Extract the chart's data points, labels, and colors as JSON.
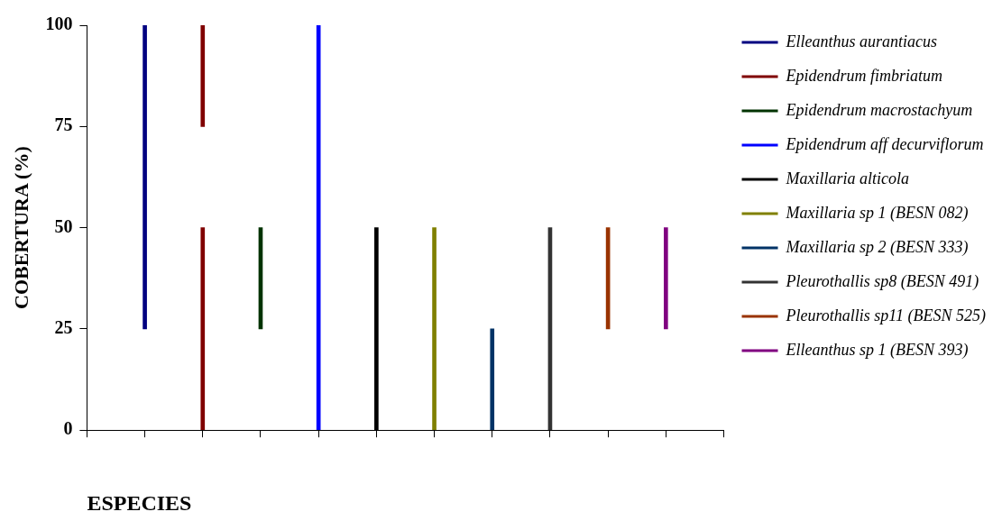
{
  "chart_data": {
    "type": "bar",
    "xlabel": "ESPECIES",
    "ylabel": "COBERTURA (%)",
    "categories": [
      null,
      null,
      null,
      null,
      null,
      null,
      null,
      null,
      null,
      null,
      null,
      null
    ],
    "ylim": [
      0,
      100
    ],
    "yticks": [
      0,
      25,
      50,
      75,
      100
    ],
    "grid": false,
    "legend": "right",
    "series": [
      {
        "name": "Elleanthus aurantiacus",
        "color": "#000080",
        "values": [
          null,
          75,
          null,
          null,
          null,
          null,
          null,
          null,
          null,
          null,
          null,
          null
        ],
        "base": [
          null,
          25,
          null,
          null,
          null,
          null,
          null,
          null,
          null,
          null,
          null,
          null
        ]
      },
      {
        "name": "Epidendrum fimbriatum",
        "color": "#800000",
        "values": [
          null,
          null,
          50,
          null,
          null,
          null,
          null,
          null,
          null,
          null,
          null,
          null
        ],
        "base": [
          null,
          null,
          0,
          null,
          null,
          null,
          null,
          null,
          null,
          null,
          null,
          null
        ]
      },
      {
        "color": "#800000",
        "values": [
          null,
          null,
          25,
          null,
          null,
          null,
          null,
          null,
          null,
          null,
          null,
          null
        ],
        "base": [
          null,
          null,
          75,
          null,
          null,
          null,
          null,
          null,
          null,
          null,
          null,
          null
        ]
      },
      {
        "name": "Epidendrum macrostachyum",
        "color": "#003300",
        "values": [
          null,
          null,
          null,
          25,
          null,
          null,
          null,
          null,
          null,
          null,
          null,
          null
        ],
        "base": [
          null,
          null,
          null,
          25,
          null,
          null,
          null,
          null,
          null,
          null,
          null,
          null
        ]
      },
      {
        "name": "Epidendrum aff decurviflorum",
        "color": "#0000ff",
        "values": [
          null,
          null,
          null,
          null,
          100,
          null,
          null,
          null,
          null,
          null,
          null,
          null
        ],
        "base": [
          null,
          null,
          null,
          null,
          0,
          null,
          null,
          null,
          null,
          null,
          null,
          null
        ]
      },
      {
        "name": "Maxillaria alticola",
        "color": "#000000",
        "values": [
          null,
          null,
          null,
          null,
          null,
          50,
          null,
          null,
          null,
          null,
          null,
          null
        ],
        "base": [
          null,
          null,
          null,
          null,
          null,
          0,
          null,
          null,
          null,
          null,
          null,
          null
        ]
      },
      {
        "name": "Maxillaria sp 1 (BESN 082)",
        "color": "#808000",
        "values": [
          null,
          null,
          null,
          null,
          null,
          null,
          50,
          null,
          null,
          null,
          null,
          null
        ],
        "base": [
          null,
          null,
          null,
          null,
          null,
          null,
          0,
          null,
          null,
          null,
          null,
          null
        ]
      },
      {
        "name": "Maxillaria sp 2 (BESN 333)",
        "color": "#003366",
        "values": [
          null,
          null,
          null,
          null,
          null,
          null,
          null,
          25,
          null,
          null,
          null,
          null
        ],
        "base": [
          null,
          null,
          null,
          null,
          null,
          null,
          null,
          0,
          null,
          null,
          null,
          null
        ]
      },
      {
        "name": "Pleurothallis sp8 (BESN 491)",
        "color": "#333333",
        "values": [
          null,
          null,
          null,
          null,
          null,
          null,
          null,
          null,
          50,
          null,
          null,
          null
        ],
        "base": [
          null,
          null,
          null,
          null,
          null,
          null,
          null,
          null,
          0,
          null,
          null,
          null
        ]
      },
      {
        "name": "Pleurothallis sp11 (BESN 525)",
        "color": "#993300",
        "values": [
          null,
          null,
          null,
          null,
          null,
          null,
          null,
          null,
          null,
          25,
          null,
          null
        ],
        "base": [
          null,
          null,
          null,
          null,
          null,
          null,
          null,
          null,
          null,
          25,
          null,
          null
        ]
      },
      {
        "name": "Elleanthus sp 1 (BESN 393)",
        "color": "#800080",
        "values": [
          null,
          null,
          null,
          null,
          null,
          null,
          null,
          null,
          null,
          null,
          25,
          null
        ],
        "base": [
          null,
          null,
          null,
          null,
          null,
          null,
          null,
          null,
          null,
          null,
          25,
          null
        ]
      }
    ]
  }
}
